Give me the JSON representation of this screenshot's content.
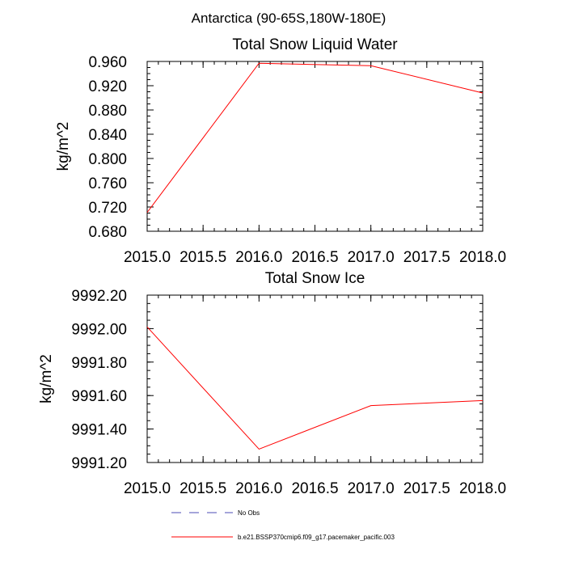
{
  "page_title": "Antarctica (90-65S,180W-180E)",
  "chart_data": [
    {
      "type": "line",
      "title": "Total Snow Liquid Water",
      "xlabel": "",
      "ylabel": "kg/m^2",
      "xlim": [
        2015.0,
        2018.0
      ],
      "ylim": [
        0.68,
        0.96
      ],
      "x_ticks": [
        "2015.0",
        "2015.5",
        "2016.0",
        "2016.5",
        "2017.0",
        "2017.5",
        "2018.0"
      ],
      "y_ticks": [
        "0.680",
        "0.720",
        "0.760",
        "0.800",
        "0.840",
        "0.880",
        "0.920",
        "0.960"
      ],
      "grid": false,
      "series": [
        {
          "name": "b.e21.BSSP370cmip6.f09_g17.pacemaker_pacific.003",
          "color": "#ff0000",
          "x": [
            2015.0,
            2016.0,
            2017.0,
            2018.0
          ],
          "y": [
            0.711,
            0.957,
            0.953,
            0.908
          ]
        }
      ]
    },
    {
      "type": "line",
      "title": "Total Snow Ice",
      "xlabel": "",
      "ylabel": "kg/m^2",
      "xlim": [
        2015.0,
        2018.0
      ],
      "ylim": [
        9991.2,
        9992.2
      ],
      "x_ticks": [
        "2015.0",
        "2015.5",
        "2016.0",
        "2016.5",
        "2017.0",
        "2017.5",
        "2018.0"
      ],
      "y_ticks": [
        "9991.20",
        "9991.40",
        "9991.60",
        "9991.80",
        "9992.00",
        "9992.20"
      ],
      "grid": false,
      "series": [
        {
          "name": "b.e21.BSSP370cmip6.f09_g17.pacemaker_pacific.003",
          "color": "#ff0000",
          "x": [
            2015.0,
            2016.0,
            2017.0,
            2018.0
          ],
          "y": [
            9992.01,
            9991.28,
            9991.54,
            9991.57
          ]
        }
      ]
    }
  ],
  "legend": {
    "items": [
      {
        "label": "No Obs",
        "color": "#4b4bb4",
        "dashed": true
      },
      {
        "label": "b.e21.BSSP370cmip6.f09_g17.pacemaker_pacific.003",
        "color": "#ff0000",
        "dashed": false
      }
    ]
  }
}
